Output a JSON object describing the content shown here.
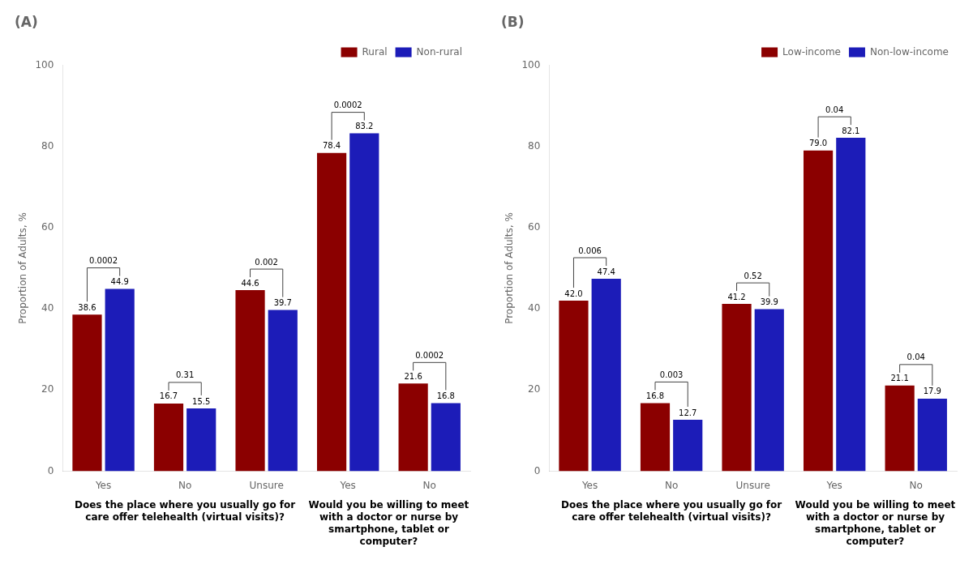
{
  "chart_data": [
    {
      "type": "bar",
      "title": "(A)",
      "ylabel": "Proportion of Adults, %",
      "groups": [
        {
          "xlabel": "Does the place where you usually go for\ncare offer telehealth (virtual visits)?",
          "categories": [
            "Yes",
            "No",
            "Unsure"
          ],
          "p_values": [
            "0.0002",
            "0.31",
            "0.002"
          ]
        },
        {
          "xlabel": "Would you be willing to meet\nwith a doctor or nurse by\nsmartphone, tablet or\ncomputer?",
          "categories": [
            "Yes",
            "No"
          ],
          "p_values": [
            "0.0002",
            "0.0002"
          ]
        }
      ],
      "series": [
        {
          "name": "Rural",
          "color": "#8B0000",
          "values": [
            38.6,
            16.7,
            44.6,
            78.4,
            21.6
          ],
          "value_labels": [
            "38.6",
            "16.7",
            "44.6",
            "78.4",
            "21.6"
          ]
        },
        {
          "name": "Non-rural",
          "color": "#1C1CB8",
          "values": [
            44.9,
            15.5,
            39.7,
            83.2,
            16.8
          ],
          "value_labels": [
            "44.9",
            "15.5",
            "39.7",
            "83.2",
            "16.8"
          ]
        }
      ],
      "ylim": [
        0,
        100
      ],
      "yticks": [
        0,
        20,
        40,
        60,
        80,
        100
      ],
      "grid": false,
      "legend": "upper right",
      "data_labels": true
    },
    {
      "type": "bar",
      "title": "(B)",
      "ylabel": "Proportion of Adults, %",
      "groups": [
        {
          "xlabel": "Does the place where you usually go for\ncare offer telehealth (virtual visits)?",
          "categories": [
            "Yes",
            "No",
            "Unsure"
          ],
          "p_values": [
            "0.006",
            "0.003",
            "0.52"
          ]
        },
        {
          "xlabel": "Would you be willing to meet\nwith a doctor or nurse by\nsmartphone, tablet or\ncomputer?",
          "categories": [
            "Yes",
            "No"
          ],
          "p_values": [
            "0.04",
            "0.04"
          ]
        }
      ],
      "series": [
        {
          "name": "Low-income",
          "color": "#8B0000",
          "values": [
            42.0,
            16.8,
            41.2,
            79.0,
            21.1
          ],
          "value_labels": [
            "42.0",
            "16.8",
            "41.2",
            "79.0",
            "21.1"
          ]
        },
        {
          "name": "Non-low-income",
          "color": "#1C1CB8",
          "values": [
            47.4,
            12.7,
            39.9,
            82.1,
            17.9
          ],
          "value_labels": [
            "47.4",
            "12.7",
            "39.9",
            "82.1",
            "17.9"
          ]
        }
      ],
      "ylim": [
        0,
        100
      ],
      "yticks": [
        0,
        20,
        40,
        60,
        80,
        100
      ],
      "grid": false,
      "legend": "upper right",
      "data_labels": true
    }
  ]
}
